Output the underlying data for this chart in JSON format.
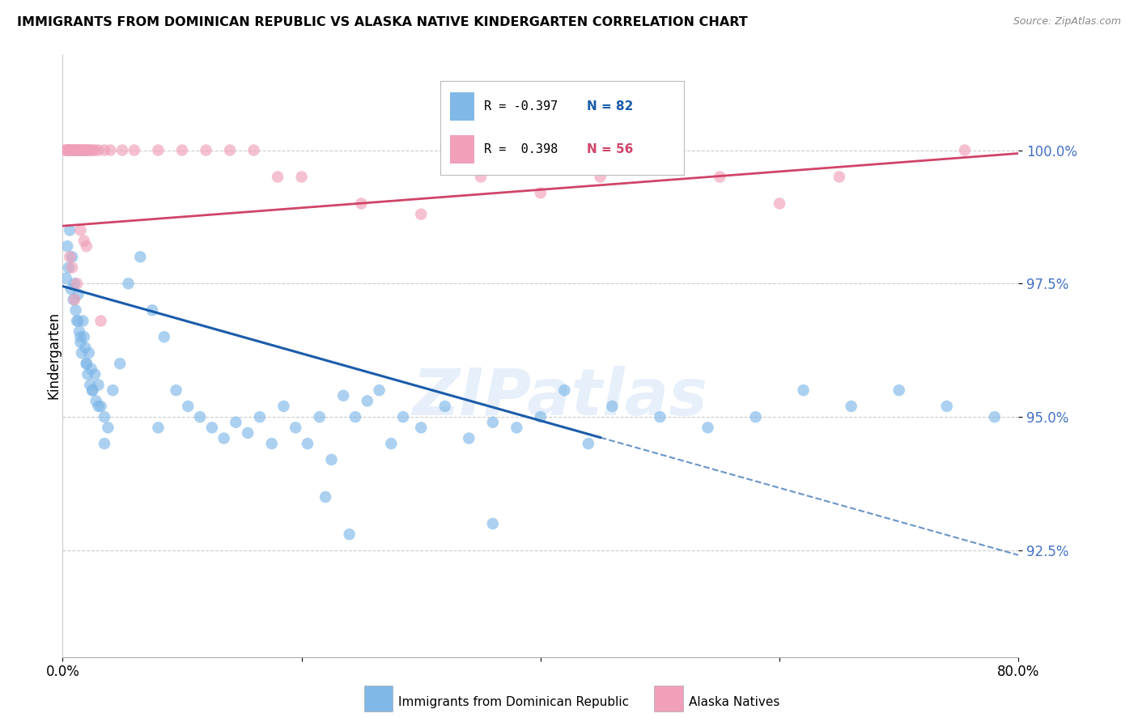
{
  "title": "IMMIGRANTS FROM DOMINICAN REPUBLIC VS ALASKA NATIVE KINDERGARTEN CORRELATION CHART",
  "source": "Source: ZipAtlas.com",
  "ylabel": "Kindergarten",
  "xlim": [
    0.0,
    80.0
  ],
  "ylim": [
    90.5,
    101.8
  ],
  "yticks": [
    92.5,
    95.0,
    97.5,
    100.0
  ],
  "ytick_labels": [
    "92.5%",
    "95.0%",
    "97.5%",
    "100.0%"
  ],
  "xtick_labels": [
    "0.0%",
    "",
    "",
    "",
    "80.0%"
  ],
  "blue_R": -0.397,
  "blue_N": 82,
  "pink_R": 0.398,
  "pink_N": 56,
  "blue_color": "#80b8e8",
  "pink_color": "#f0a0b8",
  "blue_line_color": "#1a5caa",
  "pink_line_color": "#d04468",
  "legend_label_blue": "Immigrants from Dominican Republic",
  "legend_label_pink": "Alaska Natives",
  "watermark": "ZIPatlas",
  "blue_slope": -0.063,
  "blue_intercept": 97.45,
  "blue_solid_end": 45.0,
  "pink_slope": 0.017,
  "pink_intercept": 98.58,
  "blue_x": [
    0.3,
    0.4,
    0.5,
    0.6,
    0.7,
    0.8,
    0.9,
    1.0,
    1.1,
    1.2,
    1.3,
    1.4,
    1.5,
    1.6,
    1.7,
    1.8,
    1.9,
    2.0,
    2.1,
    2.2,
    2.3,
    2.4,
    2.5,
    2.7,
    2.8,
    3.0,
    3.2,
    3.5,
    3.8,
    4.2,
    4.8,
    5.5,
    6.5,
    7.5,
    8.5,
    9.5,
    10.5,
    11.5,
    12.5,
    13.5,
    14.5,
    15.5,
    16.5,
    17.5,
    18.5,
    19.5,
    20.5,
    21.5,
    22.5,
    23.5,
    24.5,
    25.5,
    26.5,
    27.5,
    28.5,
    30.0,
    32.0,
    34.0,
    36.0,
    38.0,
    40.0,
    42.0,
    44.0,
    46.0,
    50.0,
    54.0,
    58.0,
    62.0,
    66.0,
    70.0,
    74.0,
    78.0,
    1.3,
    1.5,
    2.0,
    2.5,
    3.0,
    3.5,
    24.0,
    36.0,
    8.0,
    22.0
  ],
  "blue_y": [
    97.6,
    98.2,
    97.8,
    98.5,
    97.4,
    98.0,
    97.2,
    97.5,
    97.0,
    96.8,
    97.3,
    96.6,
    96.4,
    96.2,
    96.8,
    96.5,
    96.3,
    96.0,
    95.8,
    96.2,
    95.6,
    95.9,
    95.5,
    95.8,
    95.3,
    95.6,
    95.2,
    95.0,
    94.8,
    95.5,
    96.0,
    97.5,
    98.0,
    97.0,
    96.5,
    95.5,
    95.2,
    95.0,
    94.8,
    94.6,
    94.9,
    94.7,
    95.0,
    94.5,
    95.2,
    94.8,
    94.5,
    95.0,
    94.2,
    95.4,
    95.0,
    95.3,
    95.5,
    94.5,
    95.0,
    94.8,
    95.2,
    94.6,
    94.9,
    94.8,
    95.0,
    95.5,
    94.5,
    95.2,
    95.0,
    94.8,
    95.0,
    95.5,
    95.2,
    95.5,
    95.2,
    95.0,
    96.8,
    96.5,
    96.0,
    95.5,
    95.2,
    94.5,
    92.8,
    93.0,
    94.8,
    93.5
  ],
  "pink_x": [
    0.2,
    0.3,
    0.4,
    0.5,
    0.5,
    0.6,
    0.7,
    0.8,
    0.9,
    1.0,
    1.0,
    1.1,
    1.2,
    1.3,
    1.4,
    1.5,
    1.6,
    1.7,
    1.8,
    1.9,
    2.0,
    2.1,
    2.2,
    2.4,
    2.5,
    2.7,
    3.0,
    3.5,
    4.0,
    5.0,
    6.0,
    8.0,
    10.0,
    12.0,
    14.0,
    16.0,
    18.0,
    20.0,
    25.0,
    30.0,
    35.0,
    40.0,
    45.0,
    50.0,
    55.0,
    60.0,
    65.0,
    75.5,
    1.5,
    2.0,
    0.8,
    1.2,
    0.6,
    1.0,
    1.8,
    3.2
  ],
  "pink_y": [
    100.0,
    100.0,
    100.0,
    100.0,
    100.0,
    100.0,
    100.0,
    100.0,
    100.0,
    100.0,
    100.0,
    100.0,
    100.0,
    100.0,
    100.0,
    100.0,
    100.0,
    100.0,
    100.0,
    100.0,
    100.0,
    100.0,
    100.0,
    100.0,
    100.0,
    100.0,
    100.0,
    100.0,
    100.0,
    100.0,
    100.0,
    100.0,
    100.0,
    100.0,
    100.0,
    100.0,
    99.5,
    99.5,
    99.0,
    98.8,
    99.5,
    99.2,
    99.5,
    99.8,
    99.5,
    99.0,
    99.5,
    100.0,
    98.5,
    98.2,
    97.8,
    97.5,
    98.0,
    97.2,
    98.3,
    96.8
  ]
}
